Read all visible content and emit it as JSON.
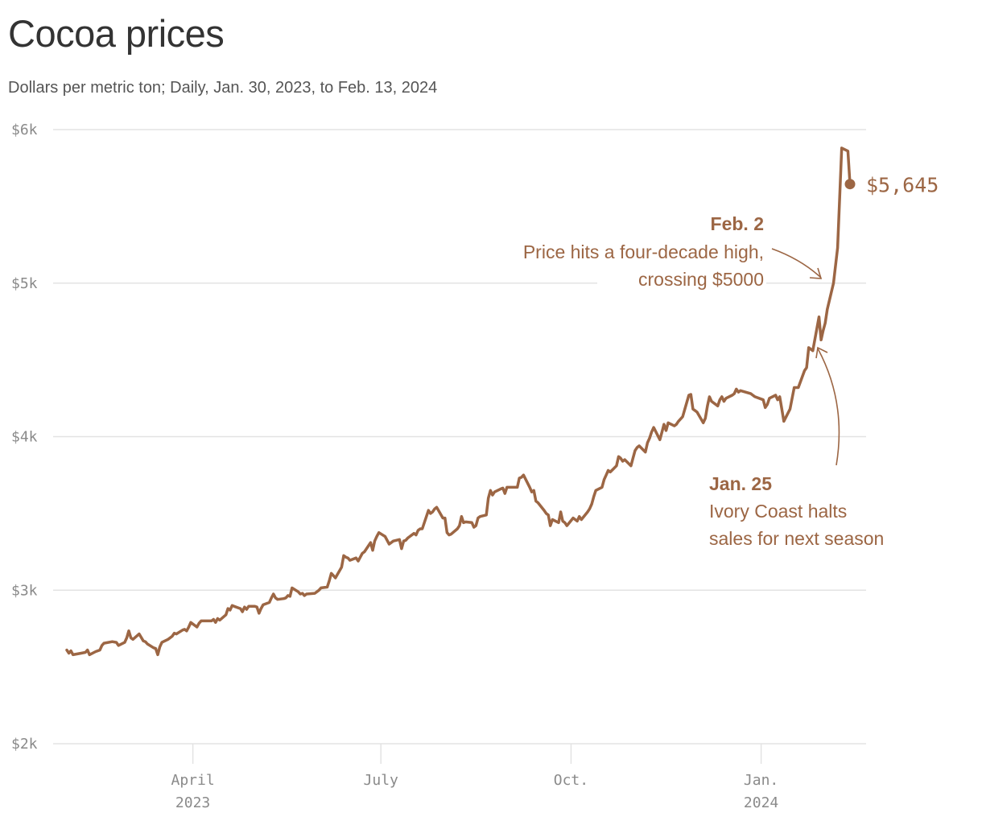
{
  "header": {
    "title": "Cocoa prices",
    "subtitle": "Dollars per metric ton; Daily, Jan. 30, 2023, to Feb. 13, 2024"
  },
  "colors": {
    "line": "#9c6644",
    "grid": "#e3e3e3",
    "title": "#333333",
    "axis_text": "#8a8a8a"
  },
  "chart_data": {
    "type": "line",
    "title": "Cocoa prices",
    "subtitle": "Dollars per metric ton; Daily, Jan. 30, 2023, to Feb. 13, 2024",
    "xlabel": "",
    "ylabel": "Dollars per metric ton",
    "x_start": "2023-01-30",
    "x_end": "2024-02-13",
    "ylim": [
      2000,
      6000
    ],
    "grid": true,
    "y_ticks": [
      {
        "value": 6000,
        "label": "$6k"
      },
      {
        "value": 5000,
        "label": "$5k"
      },
      {
        "value": 4000,
        "label": "$4k"
      },
      {
        "value": 3000,
        "label": "$3k"
      },
      {
        "value": 2000,
        "label": "$2k"
      }
    ],
    "x_ticks": [
      {
        "date": "2023-04-01",
        "label": "April",
        "sublabel": "2023"
      },
      {
        "date": "2023-07-01",
        "label": "July",
        "sublabel": ""
      },
      {
        "date": "2023-10-01",
        "label": "Oct.",
        "sublabel": ""
      },
      {
        "date": "2024-01-01",
        "label": "Jan.",
        "sublabel": "2024"
      }
    ],
    "series": [
      {
        "name": "Cocoa price",
        "points": [
          [
            "2023-01-30",
            2610
          ],
          [
            "2023-01-31",
            2590
          ],
          [
            "2023-02-01",
            2605
          ],
          [
            "2023-02-02",
            2580
          ],
          [
            "2023-02-06",
            2590
          ],
          [
            "2023-02-08",
            2595
          ],
          [
            "2023-02-09",
            2610
          ],
          [
            "2023-02-10",
            2580
          ],
          [
            "2023-02-13",
            2600
          ],
          [
            "2023-02-15",
            2610
          ],
          [
            "2023-02-16",
            2640
          ],
          [
            "2023-02-17",
            2655
          ],
          [
            "2023-02-21",
            2665
          ],
          [
            "2023-02-23",
            2660
          ],
          [
            "2023-02-24",
            2640
          ],
          [
            "2023-02-27",
            2660
          ],
          [
            "2023-02-28",
            2690
          ],
          [
            "2023-03-01",
            2735
          ],
          [
            "2023-03-02",
            2690
          ],
          [
            "2023-03-03",
            2680
          ],
          [
            "2023-03-06",
            2715
          ],
          [
            "2023-03-08",
            2670
          ],
          [
            "2023-03-09",
            2665
          ],
          [
            "2023-03-10",
            2650
          ],
          [
            "2023-03-13",
            2625
          ],
          [
            "2023-03-14",
            2620
          ],
          [
            "2023-03-15",
            2580
          ],
          [
            "2023-03-16",
            2630
          ],
          [
            "2023-03-17",
            2660
          ],
          [
            "2023-03-20",
            2680
          ],
          [
            "2023-03-22",
            2700
          ],
          [
            "2023-03-23",
            2720
          ],
          [
            "2023-03-24",
            2715
          ],
          [
            "2023-03-27",
            2740
          ],
          [
            "2023-03-28",
            2745
          ],
          [
            "2023-03-29",
            2735
          ],
          [
            "2023-03-30",
            2760
          ],
          [
            "2023-03-31",
            2790
          ],
          [
            "2023-04-03",
            2760
          ],
          [
            "2023-04-04",
            2785
          ],
          [
            "2023-04-05",
            2800
          ],
          [
            "2023-04-10",
            2800
          ],
          [
            "2023-04-11",
            2810
          ],
          [
            "2023-04-12",
            2790
          ],
          [
            "2023-04-13",
            2815
          ],
          [
            "2023-04-14",
            2805
          ],
          [
            "2023-04-17",
            2840
          ],
          [
            "2023-04-18",
            2880
          ],
          [
            "2023-04-19",
            2870
          ],
          [
            "2023-04-20",
            2900
          ],
          [
            "2023-04-21",
            2895
          ],
          [
            "2023-04-24",
            2880
          ],
          [
            "2023-04-25",
            2860
          ],
          [
            "2023-04-26",
            2890
          ],
          [
            "2023-04-27",
            2875
          ],
          [
            "2023-04-28",
            2895
          ],
          [
            "2023-05-01",
            2895
          ],
          [
            "2023-05-02",
            2890
          ],
          [
            "2023-05-03",
            2850
          ],
          [
            "2023-05-04",
            2880
          ],
          [
            "2023-05-05",
            2905
          ],
          [
            "2023-05-08",
            2920
          ],
          [
            "2023-05-09",
            2950
          ],
          [
            "2023-05-10",
            2975
          ],
          [
            "2023-05-11",
            2950
          ],
          [
            "2023-05-12",
            2940
          ],
          [
            "2023-05-15",
            2945
          ],
          [
            "2023-05-16",
            2950
          ],
          [
            "2023-05-17",
            2965
          ],
          [
            "2023-05-18",
            2960
          ],
          [
            "2023-05-19",
            3015
          ],
          [
            "2023-05-22",
            2990
          ],
          [
            "2023-05-23",
            2975
          ],
          [
            "2023-05-24",
            2980
          ],
          [
            "2023-05-25",
            2965
          ],
          [
            "2023-05-26",
            2975
          ],
          [
            "2023-05-30",
            2980
          ],
          [
            "2023-06-01",
            3000
          ],
          [
            "2023-06-02",
            3015
          ],
          [
            "2023-06-05",
            3020
          ],
          [
            "2023-06-06",
            3060
          ],
          [
            "2023-06-07",
            3110
          ],
          [
            "2023-06-08",
            3095
          ],
          [
            "2023-06-09",
            3080
          ],
          [
            "2023-06-12",
            3150
          ],
          [
            "2023-06-13",
            3225
          ],
          [
            "2023-06-14",
            3215
          ],
          [
            "2023-06-15",
            3210
          ],
          [
            "2023-06-16",
            3195
          ],
          [
            "2023-06-19",
            3210
          ],
          [
            "2023-06-20",
            3190
          ],
          [
            "2023-06-21",
            3215
          ],
          [
            "2023-06-22",
            3240
          ],
          [
            "2023-06-23",
            3250
          ],
          [
            "2023-06-26",
            3310
          ],
          [
            "2023-06-27",
            3260
          ],
          [
            "2023-06-28",
            3320
          ],
          [
            "2023-06-29",
            3350
          ],
          [
            "2023-06-30",
            3375
          ],
          [
            "2023-07-03",
            3350
          ],
          [
            "2023-07-05",
            3300
          ],
          [
            "2023-07-06",
            3310
          ],
          [
            "2023-07-07",
            3320
          ],
          [
            "2023-07-10",
            3330
          ],
          [
            "2023-07-11",
            3270
          ],
          [
            "2023-07-12",
            3320
          ],
          [
            "2023-07-13",
            3325
          ],
          [
            "2023-07-14",
            3340
          ],
          [
            "2023-07-17",
            3370
          ],
          [
            "2023-07-18",
            3360
          ],
          [
            "2023-07-19",
            3390
          ],
          [
            "2023-07-20",
            3400
          ],
          [
            "2023-07-21",
            3400
          ],
          [
            "2023-07-24",
            3520
          ],
          [
            "2023-07-25",
            3500
          ],
          [
            "2023-07-26",
            3510
          ],
          [
            "2023-07-27",
            3530
          ],
          [
            "2023-07-28",
            3540
          ],
          [
            "2023-07-31",
            3470
          ],
          [
            "2023-08-01",
            3470
          ],
          [
            "2023-08-02",
            3375
          ],
          [
            "2023-08-03",
            3360
          ],
          [
            "2023-08-04",
            3365
          ],
          [
            "2023-08-07",
            3400
          ],
          [
            "2023-08-08",
            3420
          ],
          [
            "2023-08-09",
            3480
          ],
          [
            "2023-08-10",
            3440
          ],
          [
            "2023-08-11",
            3445
          ],
          [
            "2023-08-14",
            3440
          ],
          [
            "2023-08-15",
            3410
          ],
          [
            "2023-08-16",
            3420
          ],
          [
            "2023-08-17",
            3470
          ],
          [
            "2023-08-18",
            3480
          ],
          [
            "2023-08-21",
            3490
          ],
          [
            "2023-08-22",
            3600
          ],
          [
            "2023-08-23",
            3650
          ],
          [
            "2023-08-24",
            3620
          ],
          [
            "2023-08-25",
            3640
          ],
          [
            "2023-08-28",
            3660
          ],
          [
            "2023-08-29",
            3665
          ],
          [
            "2023-08-30",
            3630
          ],
          [
            "2023-08-31",
            3670
          ],
          [
            "2023-09-01",
            3670
          ],
          [
            "2023-09-05",
            3670
          ],
          [
            "2023-09-06",
            3730
          ],
          [
            "2023-09-07",
            3735
          ],
          [
            "2023-09-08",
            3750
          ],
          [
            "2023-09-11",
            3670
          ],
          [
            "2023-09-12",
            3640
          ],
          [
            "2023-09-13",
            3650
          ],
          [
            "2023-09-14",
            3580
          ],
          [
            "2023-09-15",
            3570
          ],
          [
            "2023-09-18",
            3520
          ],
          [
            "2023-09-19",
            3500
          ],
          [
            "2023-09-20",
            3490
          ],
          [
            "2023-09-21",
            3420
          ],
          [
            "2023-09-22",
            3460
          ],
          [
            "2023-09-25",
            3440
          ],
          [
            "2023-09-26",
            3510
          ],
          [
            "2023-09-27",
            3450
          ],
          [
            "2023-09-28",
            3440
          ],
          [
            "2023-09-29",
            3420
          ],
          [
            "2023-10-02",
            3470
          ],
          [
            "2023-10-03",
            3460
          ],
          [
            "2023-10-04",
            3450
          ],
          [
            "2023-10-05",
            3480
          ],
          [
            "2023-10-06",
            3460
          ],
          [
            "2023-10-09",
            3510
          ],
          [
            "2023-10-10",
            3530
          ],
          [
            "2023-10-11",
            3560
          ],
          [
            "2023-10-12",
            3610
          ],
          [
            "2023-10-13",
            3650
          ],
          [
            "2023-10-16",
            3670
          ],
          [
            "2023-10-17",
            3720
          ],
          [
            "2023-10-18",
            3750
          ],
          [
            "2023-10-19",
            3780
          ],
          [
            "2023-10-20",
            3770
          ],
          [
            "2023-10-23",
            3810
          ],
          [
            "2023-10-24",
            3870
          ],
          [
            "2023-10-25",
            3860
          ],
          [
            "2023-10-26",
            3840
          ],
          [
            "2023-10-27",
            3850
          ],
          [
            "2023-10-30",
            3810
          ],
          [
            "2023-10-31",
            3860
          ],
          [
            "2023-11-01",
            3910
          ],
          [
            "2023-11-02",
            3930
          ],
          [
            "2023-11-03",
            3940
          ],
          [
            "2023-11-06",
            3900
          ],
          [
            "2023-11-07",
            3960
          ],
          [
            "2023-11-08",
            3990
          ],
          [
            "2023-11-09",
            4030
          ],
          [
            "2023-11-10",
            4060
          ],
          [
            "2023-11-13",
            3980
          ],
          [
            "2023-11-14",
            4030
          ],
          [
            "2023-11-15",
            4080
          ],
          [
            "2023-11-16",
            4040
          ],
          [
            "2023-11-17",
            4090
          ],
          [
            "2023-11-20",
            4070
          ],
          [
            "2023-11-21",
            4080
          ],
          [
            "2023-11-22",
            4100
          ],
          [
            "2023-11-24",
            4130
          ],
          [
            "2023-11-27",
            4270
          ],
          [
            "2023-11-28",
            4275
          ],
          [
            "2023-11-29",
            4180
          ],
          [
            "2023-11-30",
            4170
          ],
          [
            "2023-12-01",
            4160
          ],
          [
            "2023-12-04",
            4090
          ],
          [
            "2023-12-05",
            4120
          ],
          [
            "2023-12-06",
            4200
          ],
          [
            "2023-12-07",
            4260
          ],
          [
            "2023-12-08",
            4230
          ],
          [
            "2023-12-11",
            4200
          ],
          [
            "2023-12-12",
            4240
          ],
          [
            "2023-12-13",
            4260
          ],
          [
            "2023-12-14",
            4230
          ],
          [
            "2023-12-15",
            4250
          ],
          [
            "2023-12-18",
            4270
          ],
          [
            "2023-12-19",
            4280
          ],
          [
            "2023-12-20",
            4310
          ],
          [
            "2023-12-21",
            4290
          ],
          [
            "2023-12-22",
            4300
          ],
          [
            "2023-12-27",
            4280
          ],
          [
            "2023-12-28",
            4270
          ],
          [
            "2023-12-29",
            4260
          ],
          [
            "2024-01-02",
            4240
          ],
          [
            "2024-01-03",
            4190
          ],
          [
            "2024-01-04",
            4210
          ],
          [
            "2024-01-05",
            4250
          ],
          [
            "2024-01-08",
            4270
          ],
          [
            "2024-01-09",
            4240
          ],
          [
            "2024-01-10",
            4260
          ],
          [
            "2024-01-11",
            4180
          ],
          [
            "2024-01-12",
            4100
          ],
          [
            "2024-01-15",
            4180
          ],
          [
            "2024-01-16",
            4250
          ],
          [
            "2024-01-17",
            4320
          ],
          [
            "2024-01-18",
            4320
          ],
          [
            "2024-01-19",
            4320
          ],
          [
            "2024-01-22",
            4430
          ],
          [
            "2024-01-23",
            4450
          ],
          [
            "2024-01-24",
            4580
          ],
          [
            "2024-01-25",
            4570
          ],
          [
            "2024-01-26",
            4560
          ],
          [
            "2024-01-29",
            4780
          ],
          [
            "2024-01-30",
            4630
          ],
          [
            "2024-01-31",
            4690
          ],
          [
            "2024-02-01",
            4740
          ],
          [
            "2024-02-02",
            4830
          ],
          [
            "2024-02-05",
            5000
          ],
          [
            "2024-02-07",
            5230
          ],
          [
            "2024-02-08",
            5560
          ],
          [
            "2024-02-09",
            5880
          ],
          [
            "2024-02-12",
            5860
          ],
          [
            "2024-02-13",
            5645
          ]
        ]
      }
    ],
    "end_label": "$5,645",
    "end_value": 5645,
    "annotations": [
      {
        "date": "2024-02-02",
        "title": "Feb. 2",
        "lines": [
          "Price hits a four-decade high,",
          "crossing $5000"
        ],
        "align": "right"
      },
      {
        "date": "2024-01-25",
        "title": "Jan. 25",
        "lines": [
          "Ivory Coast halts",
          "sales for next season"
        ],
        "align": "left"
      }
    ]
  }
}
